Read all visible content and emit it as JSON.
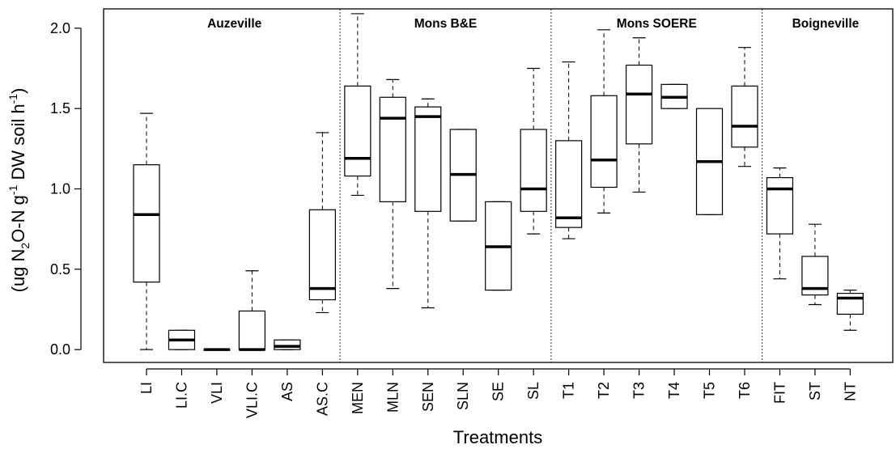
{
  "chart_data": {
    "type": "boxplot",
    "xlabel": "Treatments",
    "ylabel": {
      "parts": [
        {
          "t": "(ug N",
          "s": "n"
        },
        {
          "t": "2",
          "s": "sub"
        },
        {
          "t": "O-N g",
          "s": "n"
        },
        {
          "t": "-1",
          "s": "sup"
        },
        {
          "t": " DW soil h",
          "s": "n"
        },
        {
          "t": "-1",
          "s": "sup"
        },
        {
          "t": ")",
          "s": "n"
        }
      ]
    },
    "ylim": [
      -0.08,
      2.12
    ],
    "yticks": [
      "0.0",
      "0.5",
      "1.0",
      "1.5",
      "2.0"
    ],
    "groups": [
      {
        "name": "Auzeville",
        "start": 0,
        "end": 5
      },
      {
        "name": "Mons B&E",
        "start": 6,
        "end": 11
      },
      {
        "name": "Mons SOERE",
        "start": 12,
        "end": 17
      },
      {
        "name": "Boigneville",
        "start": 18,
        "end": 20
      }
    ],
    "categories": [
      "LI",
      "LI.C",
      "VLI",
      "VLI.C",
      "AS",
      "AS.C",
      "MEN",
      "MLN",
      "SEN",
      "SLN",
      "SE",
      "SL",
      "T1",
      "T2",
      "T3",
      "T4",
      "T5",
      "T6",
      "FIT",
      "ST",
      "NT"
    ],
    "boxes": [
      {
        "min": 0.0,
        "q1": 0.42,
        "median": 0.84,
        "q3": 1.15,
        "max": 1.47
      },
      {
        "min": 0.0,
        "q1": 0.0,
        "median": 0.06,
        "q3": 0.12,
        "max": 0.12
      },
      {
        "min": 0.0,
        "q1": 0.0,
        "median": 0.0,
        "q3": 0.0,
        "max": 0.0
      },
      {
        "min": 0.0,
        "q1": 0.0,
        "median": 0.0,
        "q3": 0.24,
        "max": 0.49
      },
      {
        "min": 0.0,
        "q1": 0.0,
        "median": 0.02,
        "q3": 0.06,
        "max": 0.06
      },
      {
        "min": 0.23,
        "q1": 0.31,
        "median": 0.38,
        "q3": 0.87,
        "max": 1.35
      },
      {
        "min": 0.96,
        "q1": 1.08,
        "median": 1.19,
        "q3": 1.64,
        "max": 2.09
      },
      {
        "min": 0.38,
        "q1": 0.92,
        "median": 1.44,
        "q3": 1.57,
        "max": 1.68
      },
      {
        "min": 0.26,
        "q1": 0.86,
        "median": 1.45,
        "q3": 1.51,
        "max": 1.56
      },
      {
        "min": 0.8,
        "q1": 0.8,
        "median": 1.09,
        "q3": 1.37,
        "max": 1.37
      },
      {
        "min": 0.37,
        "q1": 0.37,
        "median": 0.64,
        "q3": 0.92,
        "max": 0.92
      },
      {
        "min": 0.72,
        "q1": 0.86,
        "median": 1.0,
        "q3": 1.37,
        "max": 1.75
      },
      {
        "min": 0.69,
        "q1": 0.76,
        "median": 0.82,
        "q3": 1.3,
        "max": 1.79
      },
      {
        "min": 0.85,
        "q1": 1.01,
        "median": 1.18,
        "q3": 1.58,
        "max": 1.99
      },
      {
        "min": 0.98,
        "q1": 1.28,
        "median": 1.59,
        "q3": 1.77,
        "max": 1.94
      },
      {
        "min": 1.5,
        "q1": 1.5,
        "median": 1.57,
        "q3": 1.65,
        "max": 1.65
      },
      {
        "min": 0.84,
        "q1": 0.84,
        "median": 1.17,
        "q3": 1.5,
        "max": 1.5
      },
      {
        "min": 1.14,
        "q1": 1.26,
        "median": 1.39,
        "q3": 1.64,
        "max": 1.88
      },
      {
        "min": 0.44,
        "q1": 0.72,
        "median": 1.0,
        "q3": 1.07,
        "max": 1.13
      },
      {
        "min": 0.28,
        "q1": 0.34,
        "median": 0.38,
        "q3": 0.58,
        "max": 0.78
      },
      {
        "min": 0.12,
        "q1": 0.22,
        "median": 0.32,
        "q3": 0.35,
        "max": 0.37
      }
    ]
  }
}
